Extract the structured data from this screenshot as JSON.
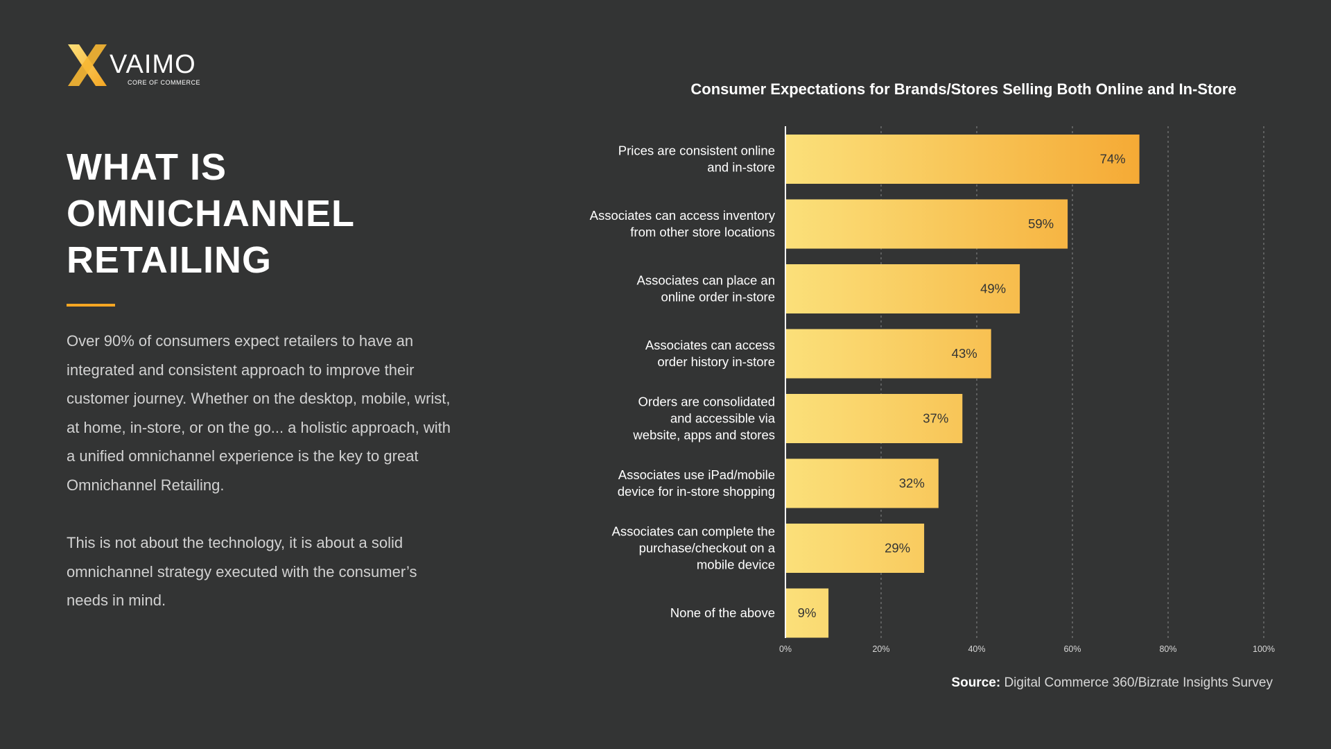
{
  "brand": {
    "name": "VAIMO",
    "tagline": "CORE OF COMMERCE",
    "logo_icon": "vaimo-x-logo",
    "colors": {
      "accent": "#f5a623",
      "background": "#333434",
      "bar_light": "#fbe07a",
      "bar_dark": "#f5aa35"
    }
  },
  "heading": {
    "line1": "WHAT IS",
    "line2": "OMNICHANNEL",
    "line3": "RETAILING"
  },
  "body": {
    "paragraph1": "Over 90% of consumers expect retailers to have an integrated and consistent approach to improve their customer journey. Whether on the desktop, mobile, wrist, at home, in-store, or on the go... a holistic approach, with a unified omnichannel experience is the key to great Omnichannel Retailing.",
    "paragraph2": "This is not about the technology, it is about a solid omnichannel strategy executed with the consumer’s needs in mind."
  },
  "source": {
    "label": "Source:",
    "text": "Digital Commerce 360/Bizrate Insights Survey"
  },
  "chart_data": {
    "type": "bar",
    "orientation": "horizontal",
    "title": "Consumer Expectations for Brands/Stores Selling Both Online and In-Store",
    "categories": [
      [
        "Prices are consistent online",
        "and in-store"
      ],
      [
        "Associates can access inventory",
        "from other store locations"
      ],
      [
        "Associates can place an",
        "online order in-store"
      ],
      [
        "Associates can access",
        "order history in-store"
      ],
      [
        "Orders are consolidated",
        "and accessible via",
        "website, apps and stores"
      ],
      [
        "Associates use iPad/mobile",
        "device for in-store shopping"
      ],
      [
        "Associates can complete the",
        "purchase/checkout on a",
        "mobile device"
      ],
      [
        "None of the above"
      ]
    ],
    "values": [
      74,
      59,
      49,
      43,
      37,
      32,
      29,
      9
    ],
    "value_labels": [
      "74%",
      "59%",
      "49%",
      "43%",
      "37%",
      "32%",
      "29%",
      "9%"
    ],
    "xlim": [
      0,
      100
    ],
    "x_ticks": [
      0,
      20,
      40,
      60,
      80,
      100
    ],
    "x_tick_labels": [
      "0%",
      "20%",
      "40%",
      "60%",
      "80%",
      "100%"
    ],
    "grid": true,
    "legend": "none"
  }
}
